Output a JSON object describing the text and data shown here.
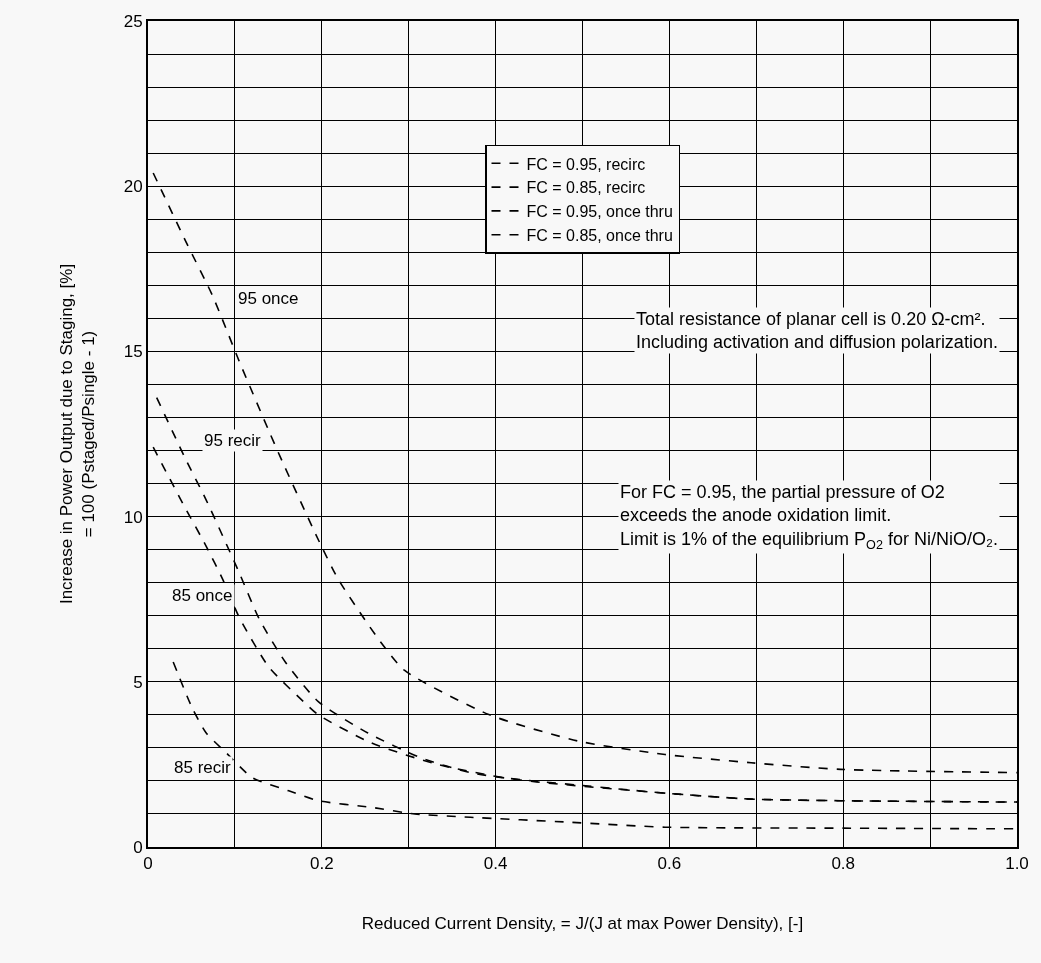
{
  "chart_data": {
    "type": "line",
    "xlabel": "Reduced Current Density, = J/(J at max Power Density), [-]",
    "ylabel": "Increase in Power Output due to Staging, [%]\n= 100 (Pstaged/Psingle - 1)",
    "xlim": [
      0,
      1
    ],
    "ylim": [
      0,
      25
    ],
    "xticks": [
      0,
      {
        "value": 0.1,
        "label": null
      },
      0.2,
      {
        "value": 0.3,
        "label": null
      },
      0.4,
      {
        "value": 0.5,
        "label": null
      },
      0.6,
      {
        "value": 0.7,
        "label": null
      },
      0.8,
      {
        "value": 0.9,
        "label": null
      },
      {
        "value": 1,
        "label": "1.0"
      }
    ],
    "yticks": [
      0,
      {
        "value": 1,
        "label": null
      },
      {
        "value": 2,
        "label": null
      },
      {
        "value": 3,
        "label": null
      },
      {
        "value": 4,
        "label": null
      },
      5,
      {
        "value": 6,
        "label": null
      },
      {
        "value": 7,
        "label": null
      },
      {
        "value": 8,
        "label": null
      },
      {
        "value": 9,
        "label": null
      },
      10,
      {
        "value": 11,
        "label": null
      },
      {
        "value": 12,
        "label": null
      },
      {
        "value": 13,
        "label": null
      },
      {
        "value": 14,
        "label": null
      },
      15,
      {
        "value": 16,
        "label": null
      },
      {
        "value": 17,
        "label": null
      },
      {
        "value": 18,
        "label": null
      },
      {
        "value": 19,
        "label": null
      },
      20,
      {
        "value": 21,
        "label": null
      },
      {
        "value": 22,
        "label": null
      },
      {
        "value": 23,
        "label": null
      },
      {
        "value": 24,
        "label": null
      },
      25
    ],
    "grid": true,
    "legend": "top",
    "marker": "none",
    "series": [
      {
        "name": "FC = 0.95, recirc",
        "color": "#000000",
        "line_style": "dashed",
        "x": [
          0.01,
          0.044,
          0.067,
          0.105,
          0.128,
          0.158,
          0.196,
          0.253,
          0.314,
          0.371,
          0.447,
          0.595,
          0.694,
          0.797,
          1.0
        ],
        "values": [
          13.6,
          11.7,
          10.5,
          8.3,
          6.9,
          5.6,
          4.4,
          3.45,
          2.7,
          2.25,
          1.97,
          1.63,
          1.45,
          1.4,
          1.36
        ]
      },
      {
        "name": "FC = 0.85, recirc",
        "color": "#000000",
        "line_style": "dashed",
        "x": [
          0.029,
          0.051,
          0.067,
          0.09,
          0.12,
          0.162,
          0.196,
          0.257,
          0.307,
          0.371,
          0.485,
          0.595,
          0.8,
          1.0
        ],
        "values": [
          5.6,
          4.2,
          3.45,
          2.85,
          2.1,
          1.7,
          1.4,
          1.2,
          1.0,
          0.9,
          0.75,
          0.6,
          0.57,
          0.55
        ]
      },
      {
        "name": "FC = 0.95, once thru",
        "color": "#000000",
        "line_style": "dashed",
        "x": [
          0.006,
          0.044,
          0.074,
          0.105,
          0.139,
          0.154,
          0.196,
          0.219,
          0.265,
          0.295,
          0.393,
          0.496,
          0.595,
          0.694,
          0.797,
          1.0
        ],
        "values": [
          20.4,
          18.3,
          16.7,
          14.7,
          12.6,
          11.7,
          9.3,
          8.1,
          6.3,
          5.35,
          4.0,
          3.2,
          2.8,
          2.55,
          2.35,
          2.25
        ]
      },
      {
        "name": "FC = 0.85, once thru",
        "color": "#000000",
        "line_style": "dashed",
        "x": [
          0.006,
          0.04,
          0.067,
          0.086,
          0.105,
          0.139,
          0.181,
          0.196,
          0.257,
          0.333,
          0.409,
          0.496,
          0.595,
          0.694,
          0.797,
          1.0
        ],
        "values": [
          12.1,
          10.4,
          9.1,
          8.1,
          6.95,
          5.45,
          4.35,
          4.0,
          3.15,
          2.5,
          2.1,
          1.87,
          1.63,
          1.45,
          1.4,
          1.36
        ]
      }
    ],
    "annotations": [
      "95 once",
      "95 recir",
      "85 once",
      "85 recir",
      "Total resistance of planar cell is 0.20 Ω-cm².\nIncluding activation and diffusion polarization.",
      "For FC = 0.95, the partial pressure of O2\nexceeds the anode oxidation limit.\nLimit is 1% of the equilibrium P$_{O2}$ for Ni/NiO/O₂."
    ]
  }
}
